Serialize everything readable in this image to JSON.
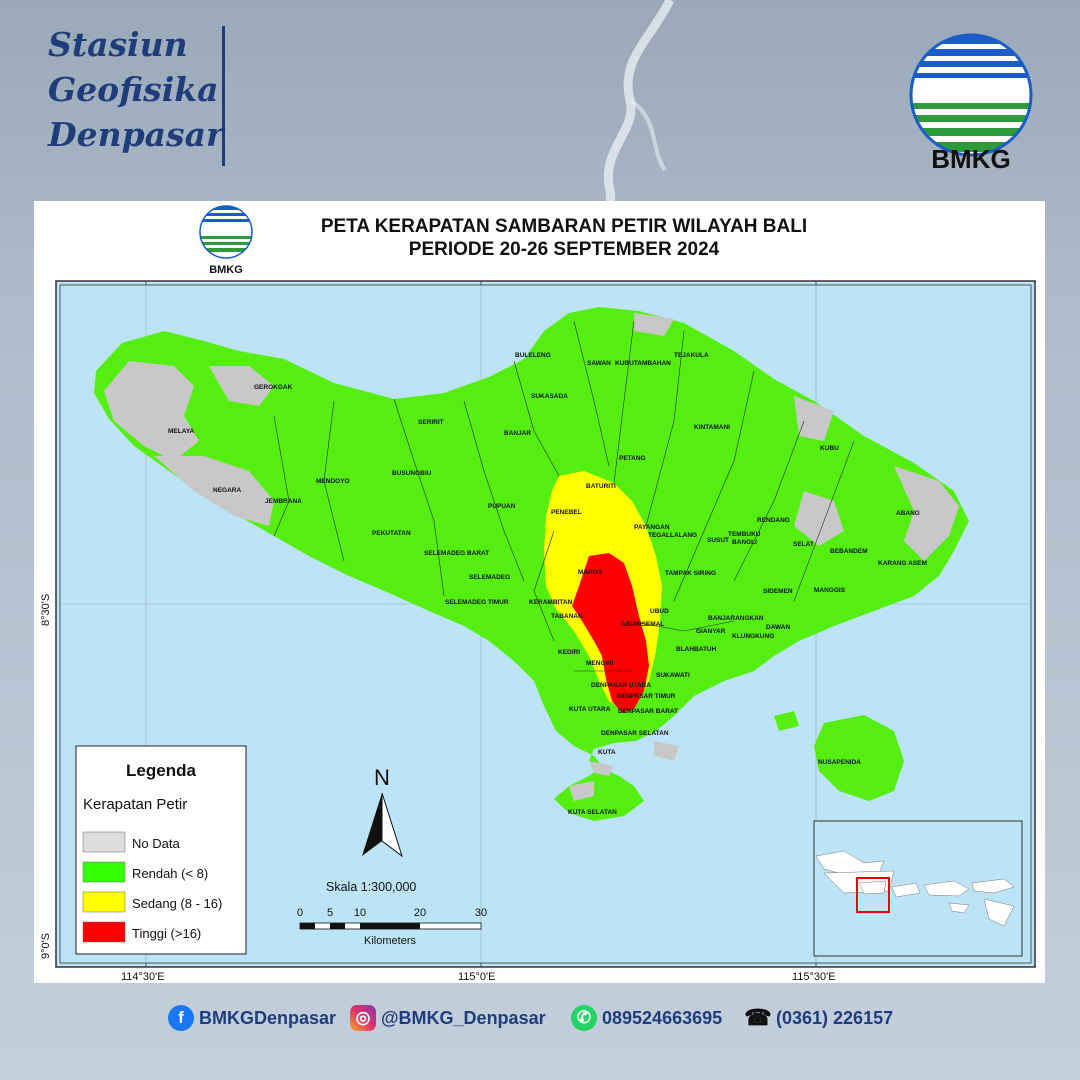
{
  "header": {
    "station_lines": [
      "Stasiun",
      "Geofisika",
      "Denpasar"
    ],
    "logo_text": "BMKG"
  },
  "map": {
    "title_line1": "PETA KERAPATAN SAMBARAN PETIR WILAYAH BALI",
    "title_line2": "PERIODE 20-26 SEPTEMBER 2024",
    "small_logo_text": "BMKG",
    "lon_labels": [
      "114°30'E",
      "115°0'E",
      "115°30'E"
    ],
    "lat_labels": [
      "8°30'S",
      "9°0'S"
    ],
    "north_label": "N",
    "scale_text": "Skala    1:300,000",
    "scale_ticks": [
      "0",
      "5",
      "10",
      "20",
      "30"
    ],
    "scale_unit": "Kilometers",
    "legend": {
      "title": "Legenda",
      "subtitle": "Kerapatan Petir",
      "items": [
        {
          "label": "No Data",
          "color": "#dddddd"
        },
        {
          "label": "Rendah (< 8)",
          "color": "#33ff00"
        },
        {
          "label": "Sedang (8 - 16)",
          "color": "#ffff00"
        },
        {
          "label": "Tinggi (>16)",
          "color": "#ff0000"
        }
      ]
    },
    "colors": {
      "sea": "#bde4f6",
      "land_low": "#55ee11",
      "no_data": "#c8c8c8",
      "medium": "#ffff00",
      "high": "#ff0000"
    },
    "regions": [
      "BULELENG",
      "SAWAN",
      "KUBUTAMBAHAN",
      "TEJAKULA",
      "GEROKGAK",
      "SUKASADA",
      "SERIRIT",
      "BANJAR",
      "KINTAMANI",
      "MELAYA",
      "PETANG",
      "KUBU",
      "BUSUNGBIU",
      "MENDOYO",
      "NEGARA",
      "JEMBRANA",
      "BATURITI",
      "PUPUAN",
      "PENEBEL",
      "PAYANGAN",
      "TEGALLALANG",
      "SUSUT",
      "TEMBUKU",
      "BANGLI",
      "RENDANG",
      "ABANG",
      "PEKUTATAN",
      "SELEMADEG BARAT",
      "SELAT",
      "BEBANDEM",
      "SELEMADEG",
      "MARGA",
      "TAMPAK SIRING",
      "KARANG ASEM",
      "SIDEMEN",
      "MANGGIS",
      "SELEMADEG TIMUR",
      "KERAMBITAN",
      "UBUD",
      "TABANAN",
      "ABIANSEMAL",
      "BANJARANGKAN",
      "DAWAN",
      "GIANYAR",
      "KLUNGKUNG",
      "KEDIRI",
      "BLAHBATUH",
      "MENGWI",
      "SUKAWATI",
      "DENPASAR UTARA",
      "DENPASAR TIMUR",
      "KUTA UTARA",
      "DENPASAR BARAT",
      "DENPASAR SELATAN",
      "KUTA",
      "NUSAPENIDA",
      "KUTA SELATAN"
    ]
  },
  "footer": {
    "facebook": "BMKGDenpasar",
    "instagram": "@BMKG_Denpasar",
    "whatsapp": "089524663695",
    "phone": "(0361) 226157"
  }
}
